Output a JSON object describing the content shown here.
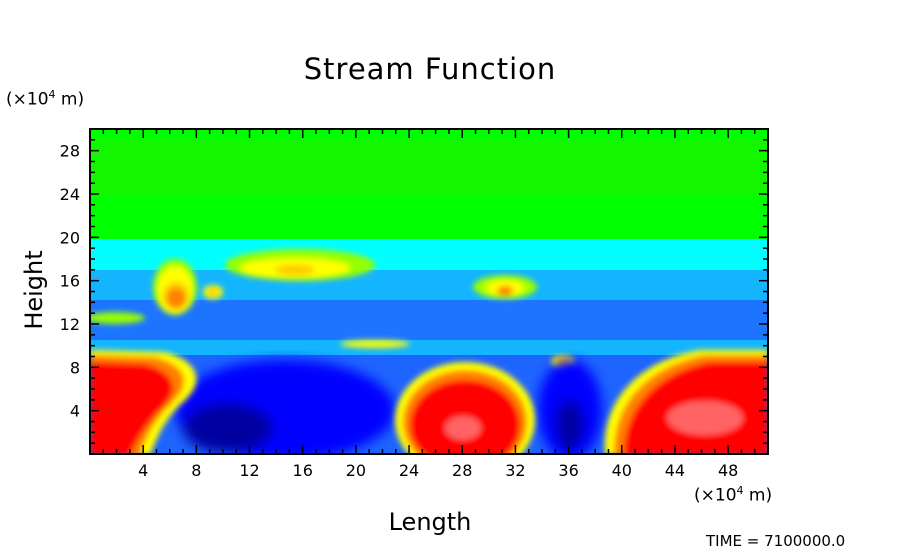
{
  "chart_data": {
    "type": "heatmap",
    "title": "Stream Function",
    "xlabel": "Length",
    "ylabel": "Height",
    "x_unit": {
      "prefix": "(×10",
      "exp": "4",
      "suffix": " m)"
    },
    "y_unit": {
      "prefix": "(×10",
      "exp": "4",
      "suffix": " m)"
    },
    "xlim": [
      0,
      51
    ],
    "ylim": [
      0,
      30
    ],
    "x_ticks": [
      4,
      8,
      12,
      16,
      20,
      24,
      28,
      32,
      36,
      40,
      44,
      48
    ],
    "y_ticks": [
      4,
      8,
      12,
      16,
      20,
      24,
      28
    ],
    "footer": "TIME = 7100000.0",
    "colors": [
      "#0000a0",
      "#0000ff",
      "#1e64ff",
      "#14b4ff",
      "#00ffff",
      "#00ff00",
      "#96ff00",
      "#ffff00",
      "#ffc800",
      "#ff8000",
      "#ff0000",
      "#ff6464"
    ],
    "features": [
      {
        "x": 1.5,
        "y": 4.5,
        "level": 11,
        "desc": "red"
      },
      {
        "x": 10,
        "y": 2.2,
        "level": 0,
        "desc": "dark-blue"
      },
      {
        "x": 28,
        "y": 2.5,
        "level": 11,
        "desc": "red"
      },
      {
        "x": 36.5,
        "y": 2.5,
        "level": 0,
        "desc": "dark-blue"
      },
      {
        "x": 47,
        "y": 3.0,
        "level": 11,
        "desc": "red"
      },
      {
        "x": 6.3,
        "y": 14.5,
        "level": 9,
        "desc": "orange"
      },
      {
        "x": 16,
        "y": 17,
        "level": 7,
        "desc": "yellow"
      },
      {
        "x": 31,
        "y": 15,
        "level": 8,
        "desc": "orange"
      },
      {
        "x": 35,
        "y": 8.5,
        "level": 7,
        "desc": "yellow"
      }
    ]
  }
}
